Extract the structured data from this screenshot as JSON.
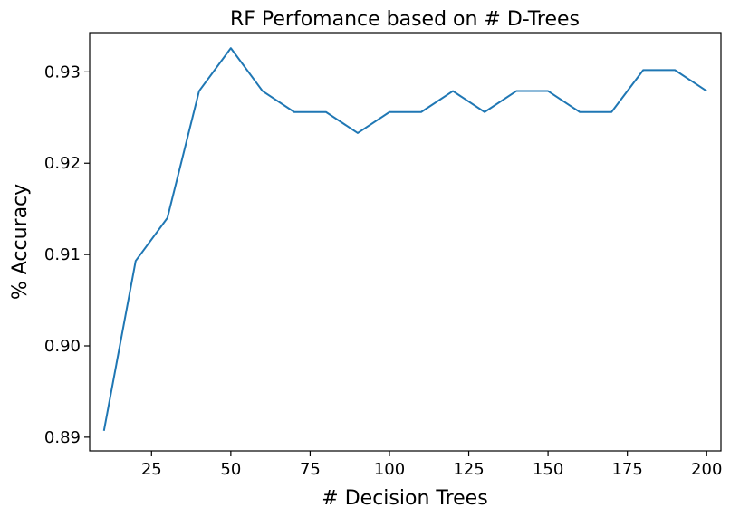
{
  "chart_data": {
    "type": "line",
    "title": "RF Perfomance based on # D-Trees",
    "xlabel": "# Decision Trees",
    "ylabel": "% Accuracy",
    "xlim": [
      5.5,
      204.5
    ],
    "ylim": [
      0.8885,
      0.9343
    ],
    "xticks": [
      25,
      50,
      75,
      100,
      125,
      150,
      175,
      200
    ],
    "xtick_labels": [
      "25",
      "50",
      "75",
      "100",
      "125",
      "150",
      "175",
      "200"
    ],
    "yticks": [
      0.89,
      0.9,
      0.91,
      0.92,
      0.93
    ],
    "ytick_labels": [
      "0.89",
      "0.90",
      "0.91",
      "0.92",
      "0.93"
    ],
    "grid": false,
    "series": [
      {
        "color": "#1f77b4",
        "x": [
          10,
          20,
          30,
          40,
          50,
          60,
          70,
          80,
          90,
          100,
          110,
          120,
          130,
          140,
          150,
          160,
          170,
          180,
          190,
          200
        ],
        "y": [
          0.8907,
          0.9093,
          0.914,
          0.9279,
          0.9326,
          0.9279,
          0.9256,
          0.9256,
          0.9233,
          0.9256,
          0.9256,
          0.9279,
          0.9256,
          0.9279,
          0.9279,
          0.9256,
          0.9256,
          0.9302,
          0.9302,
          0.9279
        ]
      }
    ]
  }
}
